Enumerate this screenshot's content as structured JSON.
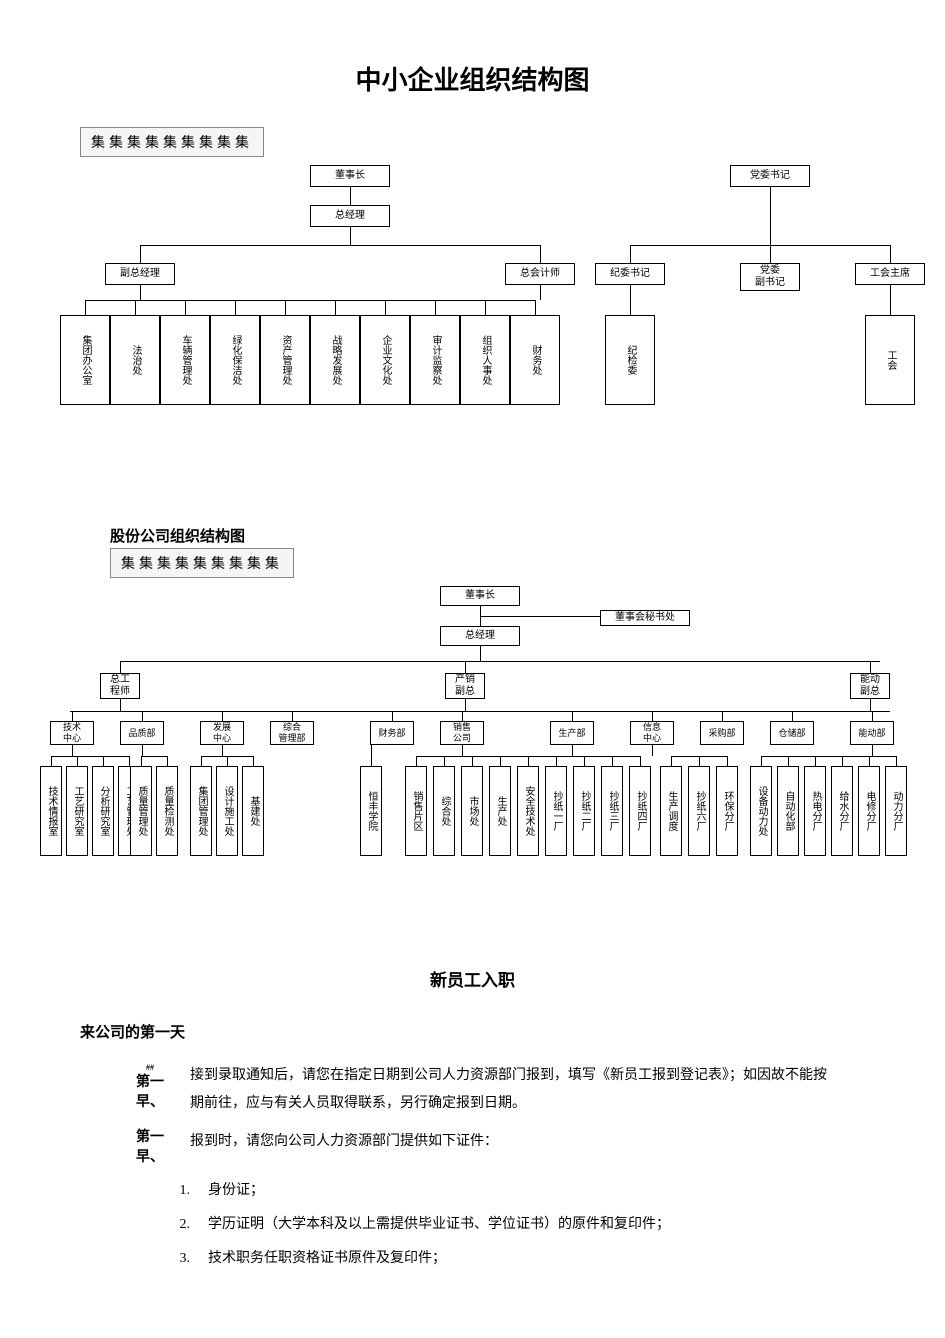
{
  "main_title": "中小企业组织结构图",
  "banner1": "集集集集集集集集集",
  "chart1": {
    "top1": "董事长",
    "top2": "党委书记",
    "gm": "总经理",
    "vgm": "副总经理",
    "ca": "总会计师",
    "r2a": "纪委书记",
    "r2b": "党委\n副书记",
    "r2c": "工会主席",
    "d": [
      "集团办公室",
      "法治处",
      "车辆管理处",
      "绿化保洁处",
      "资产管理处",
      "战略发展处",
      "企业文化处",
      "审计监察处",
      "组织人事处",
      "财务处"
    ],
    "rd1": "纪检委",
    "rd2": "工会"
  },
  "section2_title": "股份公司组织结构图",
  "banner2": "集集集集集集集集集",
  "chart2": {
    "top": "董事长",
    "sec": "董事会秘书处",
    "gm": "总经理",
    "l3a": "总工\n程师",
    "l3b": "产销\n副总",
    "l3c": "能动\n副总",
    "l4": [
      "技术\n中心",
      "品质部",
      "发展\n中心",
      "综合\n管理部",
      "财务部",
      "销售\n公司",
      "生产部",
      "信息\n中心",
      "采购部",
      "仓储部",
      "能动部"
    ],
    "l5a": [
      "技术情报室",
      "工艺研究室",
      "分析研究室",
      "工艺管理处"
    ],
    "l5b": [
      "质量管理处",
      "质量检测处"
    ],
    "l5c": [
      "集团管理处",
      "设计施工处",
      "基建处"
    ],
    "l5d": [
      "恒丰学院"
    ],
    "l5e": [
      "销售片区",
      "综合处",
      "市场处",
      "生产处",
      "安全技术处",
      "抄纸一厂",
      "抄纸二厂",
      "抄纸三厂",
      "抄纸四厂"
    ],
    "l5f": [
      "生产调度",
      "抄纸六厂",
      "环保分厂"
    ],
    "l5g": [
      "设备动力处",
      "自动化部",
      "热电分厂",
      "给水分厂",
      "电修分厂",
      "动力分厂"
    ]
  },
  "text": {
    "title": "新员工入职",
    "subheading": "来公司的第一天",
    "p1_label": "第一\n早、",
    "p1": "接到录取通知后，请您在指定日期到公司人力资源部门报到，填写《新员工报到登记表》；如因故不能按期前往，应与有关人员取得联系，另行确定报到日期。",
    "p2_label": "第一\n早、",
    "p2": "报到时，请您向公司人力资源部门提供如下证件：",
    "items": [
      "身份证；",
      "学历证明（大学本科及以上需提供毕业证书、学位证书）的原件和复印件；",
      "技术职务任职资格证书原件及复印件；"
    ]
  }
}
